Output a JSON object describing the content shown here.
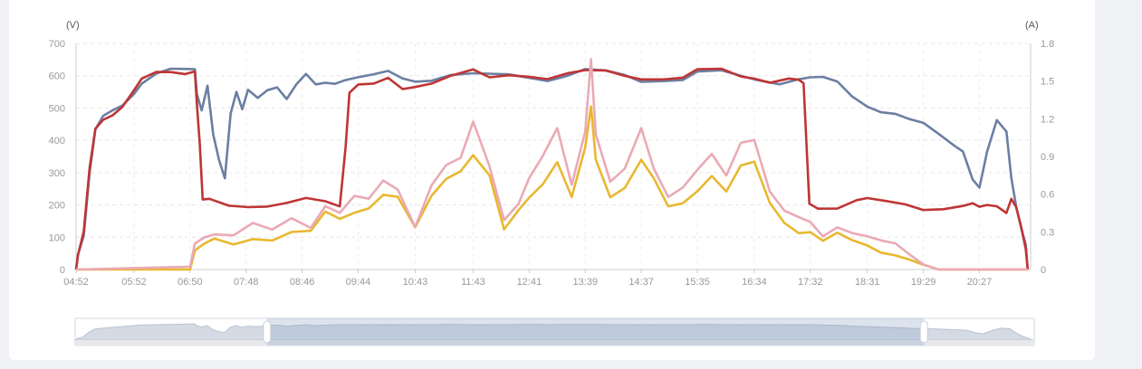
{
  "chart_data": {
    "type": "line",
    "y_left": {
      "unit_label": "(V)",
      "min": 0,
      "max": 700,
      "ticks": [
        "0",
        "100",
        "200",
        "300",
        "400",
        "500",
        "600",
        "700"
      ]
    },
    "y_right": {
      "unit_label": "(A)",
      "min": 0,
      "max": 1.8,
      "ticks": [
        "0",
        "0.3",
        "0.6",
        "0.9",
        "1.2",
        "1.5",
        "1.8"
      ]
    },
    "x_ticks": [
      "04:52",
      "05:52",
      "06:50",
      "07:48",
      "08:46",
      "09:44",
      "10:43",
      "11:43",
      "12:41",
      "13:39",
      "14:37",
      "15:35",
      "16:34",
      "17:32",
      "18:31",
      "19:29",
      "20:27"
    ],
    "x_range": [
      "04:52",
      "21:20"
    ],
    "grid": true,
    "legend": "none",
    "colors": {
      "blue": "#6b7fa3",
      "red": "#bf3535",
      "yellow": "#e8b830",
      "pink": "#eaaab4"
    },
    "series": [
      {
        "color": "blue",
        "axis": "left",
        "points": [
          [
            "04:52",
            0
          ],
          [
            "04:54",
            60
          ],
          [
            "05:00",
            120
          ],
          [
            "05:06",
            300
          ],
          [
            "05:12",
            420
          ],
          [
            "05:20",
            460
          ],
          [
            "05:30",
            490
          ],
          [
            "05:40",
            520
          ],
          [
            "05:52",
            560
          ],
          [
            "06:00",
            580
          ],
          [
            "06:15",
            595
          ],
          [
            "06:30",
            605
          ],
          [
            "06:45",
            615
          ],
          [
            "06:55",
            630
          ],
          [
            "06:57",
            560
          ],
          [
            "07:02",
            500
          ],
          [
            "07:08",
            560
          ],
          [
            "07:14",
            400
          ],
          [
            "07:20",
            330
          ],
          [
            "07:26",
            290
          ],
          [
            "07:32",
            500
          ],
          [
            "07:38",
            560
          ],
          [
            "07:44",
            490
          ],
          [
            "07:50",
            540
          ],
          [
            "08:00",
            520
          ],
          [
            "08:10",
            560
          ],
          [
            "08:20",
            580
          ],
          [
            "08:30",
            540
          ],
          [
            "08:40",
            570
          ],
          [
            "08:50",
            590
          ],
          [
            "09:00",
            560
          ],
          [
            "09:10",
            580
          ],
          [
            "09:20",
            590
          ],
          [
            "09:30",
            600
          ],
          [
            "09:44",
            595
          ],
          [
            "10:00",
            590
          ],
          [
            "10:15",
            600
          ],
          [
            "10:30",
            590
          ],
          [
            "10:43",
            595
          ],
          [
            "11:00",
            600
          ],
          [
            "11:20",
            605
          ],
          [
            "11:43",
            595
          ],
          [
            "12:00",
            590
          ],
          [
            "12:20",
            600
          ],
          [
            "12:41",
            605
          ],
          [
            "13:00",
            600
          ],
          [
            "13:20",
            605
          ],
          [
            "13:39",
            610
          ],
          [
            "14:00",
            600
          ],
          [
            "14:20",
            595
          ],
          [
            "14:37",
            590
          ],
          [
            "15:00",
            600
          ],
          [
            "15:20",
            595
          ],
          [
            "15:35",
            605
          ],
          [
            "16:00",
            600
          ],
          [
            "16:20",
            590
          ],
          [
            "16:34",
            595
          ],
          [
            "17:00",
            590
          ],
          [
            "17:20",
            600
          ],
          [
            "17:32",
            590
          ],
          [
            "17:45",
            580
          ],
          [
            "18:00",
            570
          ],
          [
            "18:15",
            540
          ],
          [
            "18:31",
            520
          ],
          [
            "18:45",
            500
          ],
          [
            "19:00",
            480
          ],
          [
            "19:15",
            450
          ],
          [
            "19:29",
            440
          ],
          [
            "19:45",
            420
          ],
          [
            "20:00",
            400
          ],
          [
            "20:10",
            380
          ],
          [
            "20:20",
            280
          ],
          [
            "20:27",
            240
          ],
          [
            "20:35",
            350
          ],
          [
            "20:45",
            460
          ],
          [
            "20:55",
            440
          ],
          [
            "21:00",
            300
          ],
          [
            "21:05",
            200
          ],
          [
            "21:10",
            120
          ],
          [
            "21:15",
            60
          ],
          [
            "21:17",
            0
          ]
        ]
      },
      {
        "color": "red",
        "axis": "left",
        "points": [
          [
            "04:52",
            0
          ],
          [
            "04:54",
            60
          ],
          [
            "05:00",
            120
          ],
          [
            "05:06",
            300
          ],
          [
            "05:12",
            420
          ],
          [
            "05:20",
            460
          ],
          [
            "05:30",
            490
          ],
          [
            "05:40",
            520
          ],
          [
            "05:52",
            560
          ],
          [
            "06:00",
            580
          ],
          [
            "06:15",
            595
          ],
          [
            "06:30",
            605
          ],
          [
            "06:45",
            615
          ],
          [
            "06:55",
            630
          ],
          [
            "06:57",
            520
          ],
          [
            "07:00",
            380
          ],
          [
            "07:03",
            200
          ],
          [
            "07:10",
            210
          ],
          [
            "07:30",
            205
          ],
          [
            "07:50",
            210
          ],
          [
            "08:10",
            205
          ],
          [
            "08:30",
            200
          ],
          [
            "08:50",
            205
          ],
          [
            "09:10",
            200
          ],
          [
            "09:25",
            200
          ],
          [
            "09:31",
            395
          ],
          [
            "09:35",
            560
          ],
          [
            "09:44",
            570
          ],
          [
            "10:00",
            560
          ],
          [
            "10:15",
            580
          ],
          [
            "10:30",
            560
          ],
          [
            "10:43",
            580
          ],
          [
            "11:00",
            590
          ],
          [
            "11:20",
            600
          ],
          [
            "11:43",
            605
          ],
          [
            "12:00",
            580
          ],
          [
            "12:20",
            600
          ],
          [
            "12:41",
            610
          ],
          [
            "13:00",
            605
          ],
          [
            "13:20",
            610
          ],
          [
            "13:39",
            605
          ],
          [
            "14:00",
            600
          ],
          [
            "14:20",
            595
          ],
          [
            "14:37",
            600
          ],
          [
            "15:00",
            605
          ],
          [
            "15:20",
            600
          ],
          [
            "15:35",
            610
          ],
          [
            "16:00",
            605
          ],
          [
            "16:20",
            590
          ],
          [
            "16:34",
            600
          ],
          [
            "16:50",
            595
          ],
          [
            "17:10",
            600
          ],
          [
            "17:20",
            580
          ],
          [
            "17:25",
            560
          ],
          [
            "17:28",
            380
          ],
          [
            "17:31",
            210
          ],
          [
            "17:40",
            205
          ],
          [
            "18:00",
            200
          ],
          [
            "18:20",
            210
          ],
          [
            "18:31",
            205
          ],
          [
            "18:50",
            200
          ],
          [
            "19:10",
            205
          ],
          [
            "19:29",
            200
          ],
          [
            "19:50",
            200
          ],
          [
            "20:10",
            195
          ],
          [
            "20:20",
            190
          ],
          [
            "20:27",
            180
          ],
          [
            "20:35",
            200
          ],
          [
            "20:45",
            210
          ],
          [
            "20:55",
            190
          ],
          [
            "21:00",
            220
          ],
          [
            "21:05",
            180
          ],
          [
            "21:10",
            120
          ],
          [
            "21:15",
            60
          ],
          [
            "21:17",
            0
          ]
        ]
      },
      {
        "color": "yellow",
        "axis": "right",
        "points": [
          [
            "04:52",
            0
          ],
          [
            "06:50",
            0
          ],
          [
            "06:55",
            0.13
          ],
          [
            "07:05",
            0.18
          ],
          [
            "07:15",
            0.24
          ],
          [
            "07:35",
            0.22
          ],
          [
            "07:55",
            0.27
          ],
          [
            "08:15",
            0.24
          ],
          [
            "08:35",
            0.28
          ],
          [
            "08:55",
            0.28
          ],
          [
            "09:10",
            0.45
          ],
          [
            "09:25",
            0.42
          ],
          [
            "09:40",
            0.48
          ],
          [
            "09:55",
            0.5
          ],
          [
            "10:10",
            0.58
          ],
          [
            "10:25",
            0.55
          ],
          [
            "10:43",
            0.32
          ],
          [
            "11:00",
            0.6
          ],
          [
            "11:15",
            0.75
          ],
          [
            "11:30",
            0.8
          ],
          [
            "11:43",
            0.9
          ],
          [
            "12:00",
            0.72
          ],
          [
            "12:15",
            0.3
          ],
          [
            "12:30",
            0.48
          ],
          [
            "12:41",
            0.6
          ],
          [
            "12:55",
            0.7
          ],
          [
            "13:10",
            0.85
          ],
          [
            "13:25",
            0.55
          ],
          [
            "13:39",
            0.95
          ],
          [
            "13:45",
            1.3
          ],
          [
            "13:50",
            0.9
          ],
          [
            "14:05",
            0.6
          ],
          [
            "14:20",
            0.65
          ],
          [
            "14:37",
            0.85
          ],
          [
            "14:50",
            0.7
          ],
          [
            "15:05",
            0.5
          ],
          [
            "15:20",
            0.55
          ],
          [
            "15:35",
            0.65
          ],
          [
            "15:50",
            0.75
          ],
          [
            "16:05",
            0.6
          ],
          [
            "16:20",
            0.8
          ],
          [
            "16:34",
            0.85
          ],
          [
            "16:50",
            0.55
          ],
          [
            "17:05",
            0.4
          ],
          [
            "17:20",
            0.3
          ],
          [
            "17:32",
            0.28
          ],
          [
            "17:45",
            0.2
          ],
          [
            "18:00",
            0.28
          ],
          [
            "18:15",
            0.25
          ],
          [
            "18:31",
            0.22
          ],
          [
            "18:45",
            0.15
          ],
          [
            "19:00",
            0.1
          ],
          [
            "19:15",
            0.05
          ],
          [
            "19:29",
            0.02
          ],
          [
            "19:45",
            0
          ],
          [
            "21:17",
            0
          ]
        ]
      },
      {
        "color": "pink",
        "axis": "right",
        "points": [
          [
            "04:52",
            0
          ],
          [
            "06:50",
            0
          ],
          [
            "06:55",
            0.18
          ],
          [
            "07:05",
            0.25
          ],
          [
            "07:15",
            0.3
          ],
          [
            "07:35",
            0.3
          ],
          [
            "07:55",
            0.38
          ],
          [
            "08:15",
            0.3
          ],
          [
            "08:35",
            0.38
          ],
          [
            "08:55",
            0.32
          ],
          [
            "09:10",
            0.52
          ],
          [
            "09:25",
            0.48
          ],
          [
            "09:40",
            0.6
          ],
          [
            "09:55",
            0.55
          ],
          [
            "10:10",
            0.68
          ],
          [
            "10:25",
            0.62
          ],
          [
            "10:43",
            0.35
          ],
          [
            "11:00",
            0.7
          ],
          [
            "11:15",
            0.85
          ],
          [
            "11:30",
            0.88
          ],
          [
            "11:43",
            1.15
          ],
          [
            "12:00",
            0.8
          ],
          [
            "12:15",
            0.4
          ],
          [
            "12:30",
            0.55
          ],
          [
            "12:41",
            0.75
          ],
          [
            "12:55",
            0.9
          ],
          [
            "13:10",
            1.1
          ],
          [
            "13:25",
            0.65
          ],
          [
            "13:39",
            1.1
          ],
          [
            "13:45",
            1.7
          ],
          [
            "13:50",
            1.1
          ],
          [
            "14:05",
            0.7
          ],
          [
            "14:20",
            0.78
          ],
          [
            "14:37",
            1.1
          ],
          [
            "14:50",
            0.8
          ],
          [
            "15:05",
            0.6
          ],
          [
            "15:20",
            0.68
          ],
          [
            "15:35",
            0.8
          ],
          [
            "15:50",
            0.9
          ],
          [
            "16:05",
            0.72
          ],
          [
            "16:20",
            1.0
          ],
          [
            "16:34",
            1.05
          ],
          [
            "16:50",
            0.65
          ],
          [
            "17:05",
            0.48
          ],
          [
            "17:20",
            0.4
          ],
          [
            "17:32",
            0.35
          ],
          [
            "17:45",
            0.25
          ],
          [
            "18:00",
            0.35
          ],
          [
            "18:15",
            0.32
          ],
          [
            "18:31",
            0.28
          ],
          [
            "18:45",
            0.22
          ],
          [
            "19:00",
            0.18
          ],
          [
            "19:15",
            0.1
          ],
          [
            "19:29",
            0.05
          ],
          [
            "19:45",
            0
          ],
          [
            "21:17",
            0
          ]
        ]
      }
    ],
    "zoom_window": {
      "start": 0.2,
      "end": 0.885
    }
  }
}
